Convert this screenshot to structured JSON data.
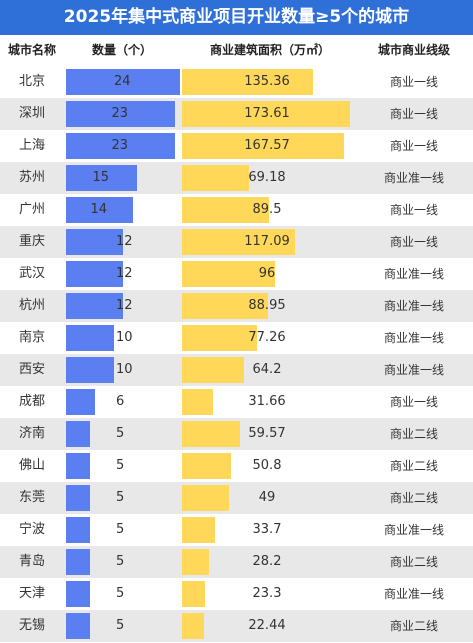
{
  "title": "2025年集中式商业项目开业数量≥5个的城市",
  "headers": {
    "city": "城市名称",
    "count": "数量（个）",
    "area": "商业建筑面积（万㎡）",
    "tier": "城市商业线级"
  },
  "colors": {
    "title_bg": "#2f6fd8",
    "count_bar": "#5b7ff0",
    "area_bar": "#ffd85a"
  },
  "chart_data": {
    "type": "table",
    "title": "2025年集中式商业项目开业数量≥5个的城市",
    "columns": [
      "城市名称",
      "数量（个）",
      "商业建筑面积（万㎡）",
      "城市商业线级"
    ],
    "count_max": 24,
    "area_max": 173.61,
    "rows": [
      {
        "city": "北京",
        "count": 24,
        "area": "135.36",
        "tier": "商业一线"
      },
      {
        "city": "深圳",
        "count": 23,
        "area": "173.61",
        "tier": "商业一线"
      },
      {
        "city": "上海",
        "count": 23,
        "area": "167.57",
        "tier": "商业一线"
      },
      {
        "city": "苏州",
        "count": 15,
        "area": "69.18",
        "tier": "商业准一线"
      },
      {
        "city": "广州",
        "count": 14,
        "area": "89.5",
        "tier": "商业一线"
      },
      {
        "city": "重庆",
        "count": 12,
        "area": "117.09",
        "tier": "商业一线"
      },
      {
        "city": "武汉",
        "count": 12,
        "area": "96",
        "tier": "商业准一线"
      },
      {
        "city": "杭州",
        "count": 12,
        "area": "88.95",
        "tier": "商业准一线"
      },
      {
        "city": "南京",
        "count": 10,
        "area": "77.26",
        "tier": "商业准一线"
      },
      {
        "city": "西安",
        "count": 10,
        "area": "64.2",
        "tier": "商业准一线"
      },
      {
        "city": "成都",
        "count": 6,
        "area": "31.66",
        "tier": "商业一线"
      },
      {
        "city": "济南",
        "count": 5,
        "area": "59.57",
        "tier": "商业二线"
      },
      {
        "city": "佛山",
        "count": 5,
        "area": "50.8",
        "tier": "商业二线"
      },
      {
        "city": "东莞",
        "count": 5,
        "area": "49",
        "tier": "商业二线"
      },
      {
        "city": "宁波",
        "count": 5,
        "area": "33.7",
        "tier": "商业准一线"
      },
      {
        "city": "青岛",
        "count": 5,
        "area": "28.2",
        "tier": "商业二线"
      },
      {
        "city": "天津",
        "count": 5,
        "area": "23.3",
        "tier": "商业准一线"
      },
      {
        "city": "无锡",
        "count": 5,
        "area": "22.44",
        "tier": "商业二线"
      }
    ]
  }
}
